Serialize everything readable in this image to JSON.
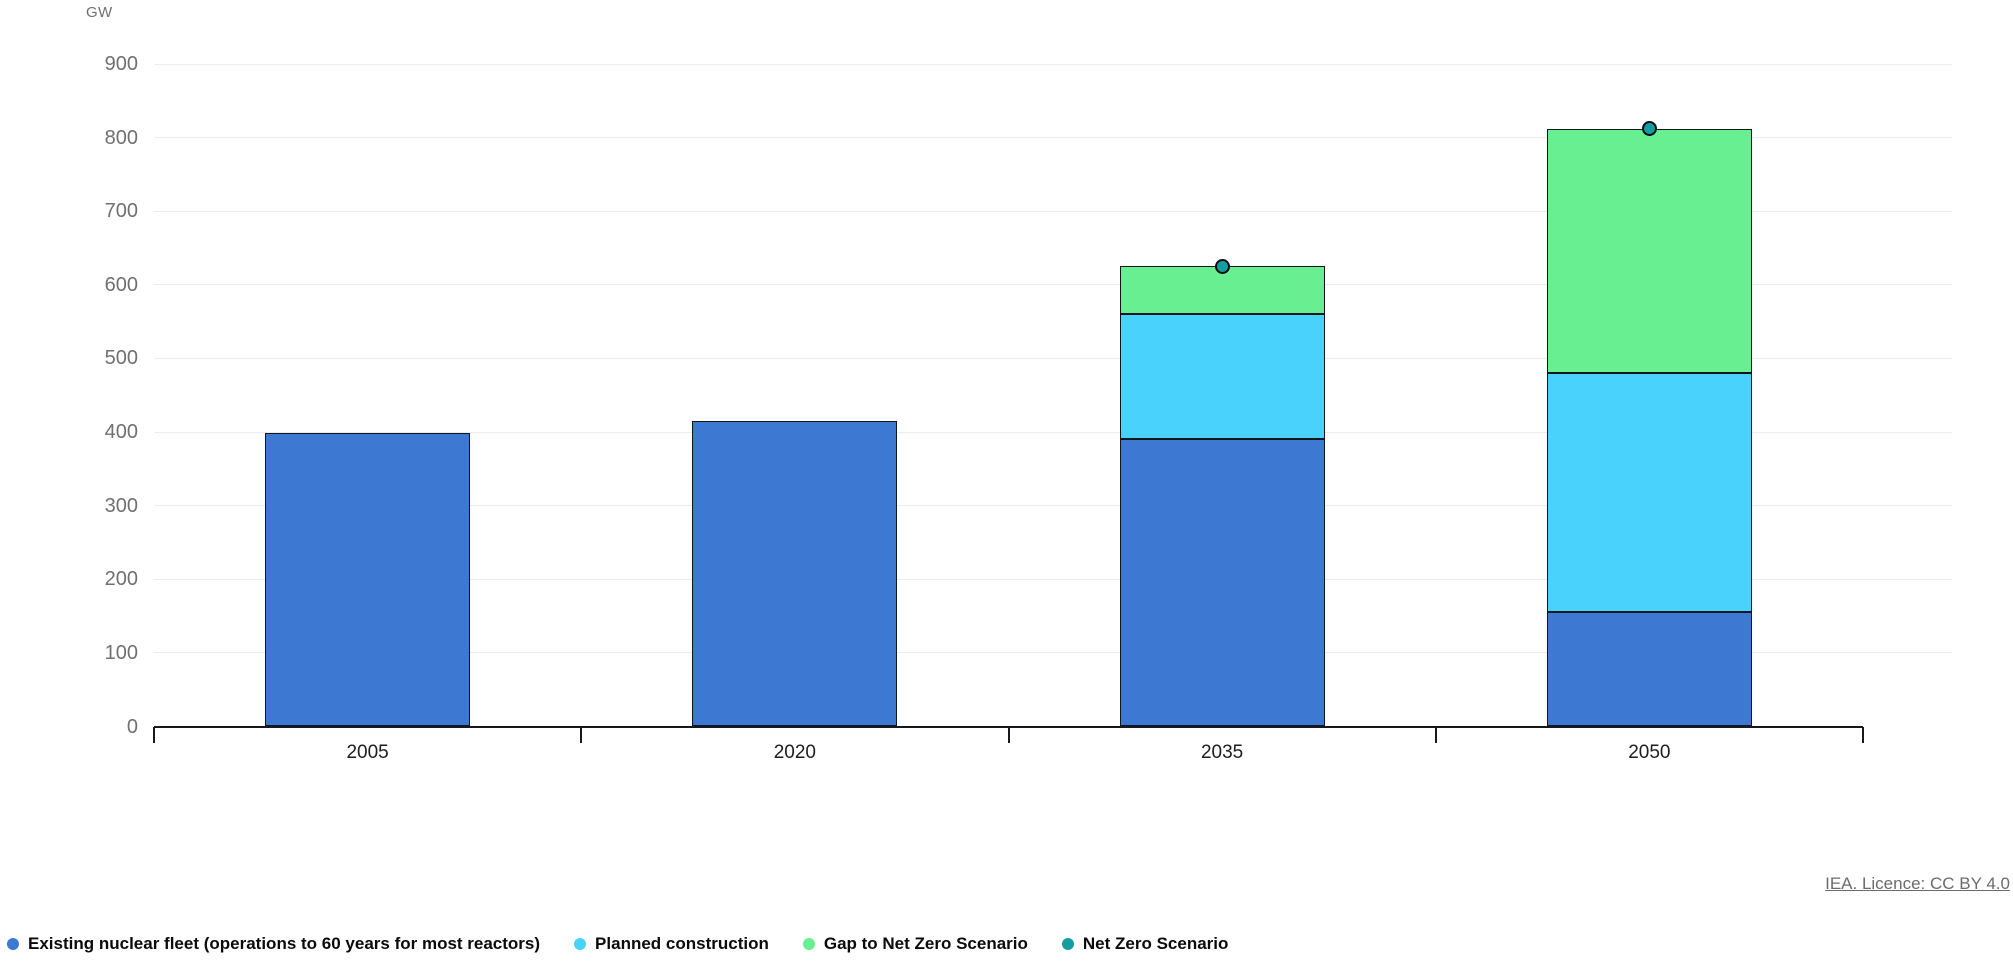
{
  "chart": {
    "unit_label": "GW"
  },
  "license": {
    "label": "IEA. Licence: CC BY 4.0"
  },
  "colors": {
    "existing_fleet_blue": "#3d78d3",
    "planned_construction_cyan": "#49d3fc",
    "gap_green": "#68ef92",
    "nze_teal": "#149da1",
    "bar_outline": "#0f161d",
    "gridline": "#ececec",
    "axis": "#17191c",
    "tick_label_gray": "#6f7070"
  },
  "chart_data": {
    "type": "bar",
    "stacked": true,
    "title": "",
    "xlabel": "",
    "ylabel": "GW",
    "ylim": [
      0,
      900
    ],
    "ytick_interval": 100,
    "grid": true,
    "legend_position": "bottom",
    "categories": [
      "2005",
      "2020",
      "2035",
      "2050"
    ],
    "series": [
      {
        "key": "existing-nuclear-fleet",
        "name": "Existing nuclear fleet (operations to 60 years for most reactors)",
        "color": "#3d78d3",
        "values": [
          399,
          415,
          390,
          155
        ]
      },
      {
        "key": "planned-construction",
        "name": "Planned construction",
        "color": "#49d3fc",
        "values": [
          0,
          0,
          170,
          325
        ]
      },
      {
        "key": "gap-to-net-zero-scenario",
        "name": "Gap to Net Zero Scenario",
        "color": "#68ef92",
        "values": [
          0,
          0,
          65,
          332
        ]
      }
    ],
    "point_series": [
      {
        "key": "net-zero-scenario",
        "name": "Net Zero Scenario",
        "color": "#149da1",
        "values": [
          null,
          null,
          625,
          812
        ]
      }
    ]
  }
}
